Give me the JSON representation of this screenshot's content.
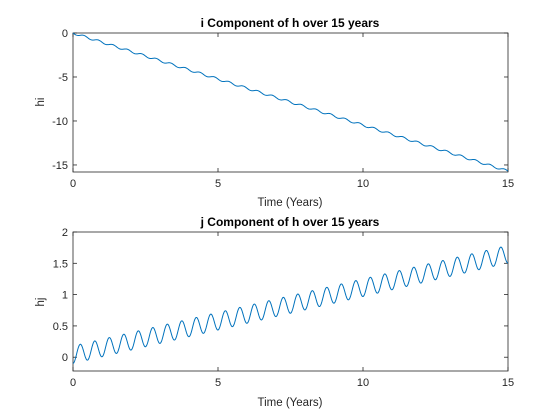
{
  "chart_data": [
    {
      "type": "line",
      "title": "i Component of h over 15 years",
      "xlabel": "Time (Years)",
      "ylabel": "hi",
      "xlim": [
        0,
        15
      ],
      "ylim": [
        -15.8,
        0
      ],
      "xticks": [
        0,
        5,
        10,
        15
      ],
      "yticks": [
        0,
        -5,
        -10,
        -15
      ],
      "grid": false,
      "series": [
        {
          "color": "#0072BD",
          "trend_slope_per_year": -1.047,
          "oscillation_amplitude": 0.12,
          "oscillation_period_years": 0.5
        }
      ],
      "x": [
        0,
        1,
        2,
        3,
        4,
        5,
        6,
        7,
        8,
        9,
        10,
        11,
        12,
        13,
        14,
        15
      ],
      "values": [
        0,
        -1.0,
        -2.1,
        -3.1,
        -4.2,
        -5.2,
        -6.3,
        -7.3,
        -8.4,
        -9.4,
        -10.5,
        -11.5,
        -12.6,
        -13.6,
        -14.7,
        -15.7
      ]
    },
    {
      "type": "line",
      "title": "j Component of h over 15 years",
      "xlabel": "Time (Years)",
      "ylabel": "hj",
      "xlim": [
        0,
        15
      ],
      "ylim": [
        -0.22,
        2
      ],
      "xticks": [
        0,
        5,
        10,
        15
      ],
      "yticks": [
        0,
        0.5,
        1,
        1.5,
        2
      ],
      "grid": false,
      "series": [
        {
          "color": "#0072BD",
          "trend_slope_per_year": 0.107,
          "oscillation_amplitude": 0.14,
          "oscillation_period_years": 0.5
        }
      ],
      "x": [
        0,
        1,
        2,
        3,
        4,
        5,
        6,
        7,
        8,
        9,
        10,
        11,
        12,
        13,
        14,
        15
      ],
      "values": [
        -0.1,
        0.03,
        0.14,
        0.24,
        0.35,
        0.45,
        0.56,
        0.67,
        0.78,
        0.88,
        0.99,
        1.1,
        1.2,
        1.31,
        1.42,
        1.55
      ]
    }
  ]
}
